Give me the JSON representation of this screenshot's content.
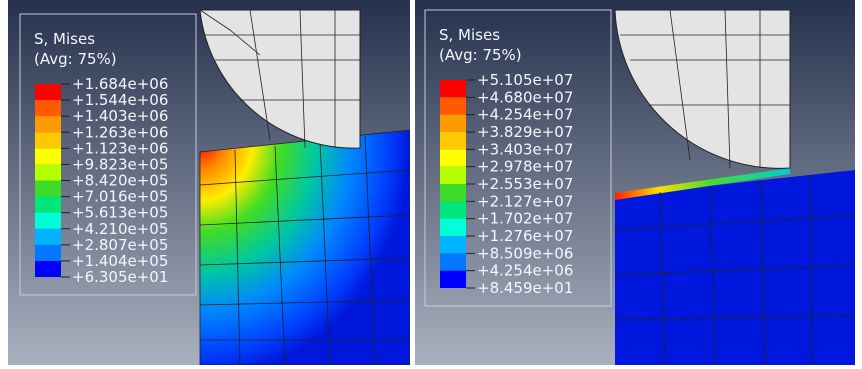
{
  "panels": [
    {
      "title": "S, Mises",
      "subtitle": "(Avg: 75%)",
      "levels": [
        "+1.684e+06",
        "+1.544e+06",
        "+1.403e+06",
        "+1.263e+06",
        "+1.123e+06",
        "+9.823e+05",
        "+8.420e+05",
        "+7.016e+05",
        "+5.613e+05",
        "+4.210e+05",
        "+2.807e+05",
        "+1.404e+05",
        "+6.305e+01"
      ]
    },
    {
      "title": "S, Mises",
      "subtitle": "(Avg: 75%)",
      "levels": [
        "+5.105e+07",
        "+4.680e+07",
        "+4.254e+07",
        "+3.829e+07",
        "+3.403e+07",
        "+2.978e+07",
        "+2.553e+07",
        "+2.127e+07",
        "+1.702e+07",
        "+1.276e+07",
        "+8.509e+06",
        "+4.254e+06",
        "+8.459e+01"
      ]
    }
  ]
}
